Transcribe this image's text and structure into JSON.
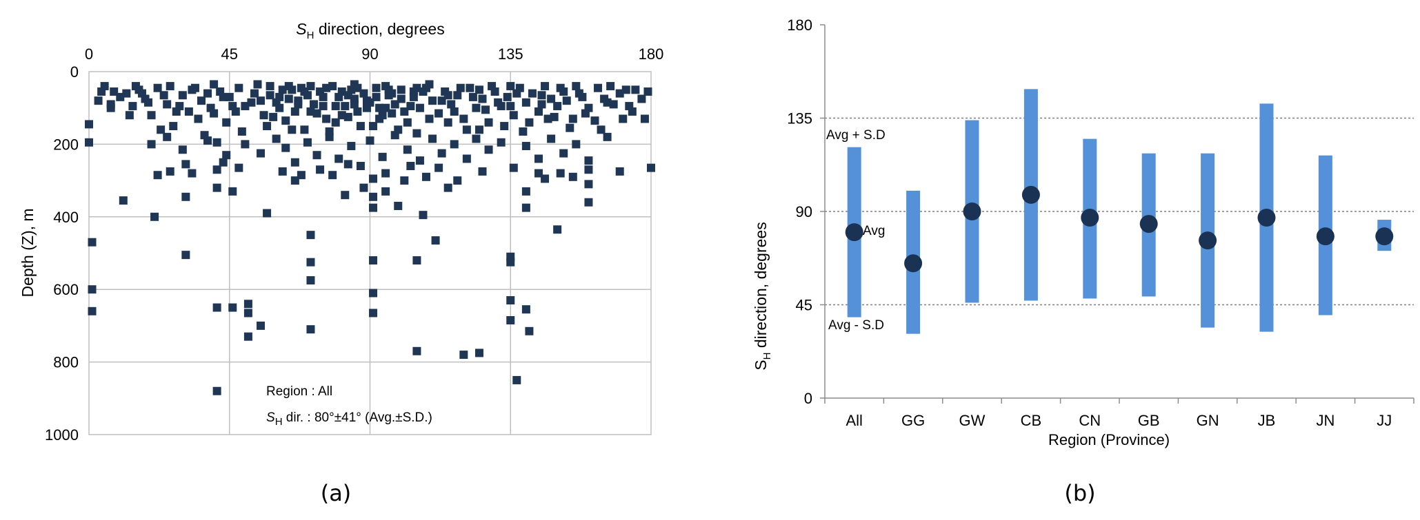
{
  "chart_data": [
    {
      "type": "scatter",
      "panel_label": "(a)",
      "xlabel": {
        "sym": "S",
        "sub": "H",
        "rest": " direction, degrees"
      },
      "ylabel": "Depth (Z), m",
      "xlim": [
        0,
        180
      ],
      "ylim": [
        0,
        1000
      ],
      "y_inverted": true,
      "x_axis_position": "top",
      "xticks": [
        0,
        45,
        90,
        135,
        180
      ],
      "yticks": [
        0,
        200,
        400,
        600,
        800,
        1000
      ],
      "grid": true,
      "marker_color": "#1f3655",
      "annotation": {
        "region": "Region : All",
        "sym": "S",
        "sub": "H",
        "rest": " dir.  : 80°±41° (Avg.±S.D.)"
      },
      "points": [
        [
          0,
          145
        ],
        [
          0,
          195
        ],
        [
          1,
          470
        ],
        [
          1,
          600
        ],
        [
          1,
          660
        ],
        [
          11,
          355
        ],
        [
          21,
          400
        ],
        [
          31,
          255
        ],
        [
          31,
          345
        ],
        [
          31,
          505
        ],
        [
          41,
          195
        ],
        [
          41,
          270
        ],
        [
          41,
          320
        ],
        [
          41,
          650
        ],
        [
          41,
          880
        ],
        [
          46,
          650
        ],
        [
          46,
          330
        ],
        [
          51,
          640
        ],
        [
          51,
          665
        ],
        [
          51,
          730
        ],
        [
          55,
          700
        ],
        [
          57,
          390
        ],
        [
          68,
          285
        ],
        [
          71,
          450
        ],
        [
          71,
          525
        ],
        [
          71,
          575
        ],
        [
          71,
          710
        ],
        [
          82,
          340
        ],
        [
          88,
          320
        ],
        [
          91,
          295
        ],
        [
          91,
          345
        ],
        [
          91,
          375
        ],
        [
          91,
          520
        ],
        [
          91,
          610
        ],
        [
          91,
          665
        ],
        [
          95,
          330
        ],
        [
          99,
          370
        ],
        [
          101,
          300
        ],
        [
          105,
          520
        ],
        [
          105,
          770
        ],
        [
          107,
          395
        ],
        [
          111,
          465
        ],
        [
          115,
          320
        ],
        [
          120,
          780
        ],
        [
          125,
          775
        ],
        [
          135,
          510
        ],
        [
          135,
          525
        ],
        [
          135,
          630
        ],
        [
          135,
          685
        ],
        [
          137,
          850
        ],
        [
          140,
          330
        ],
        [
          140,
          375
        ],
        [
          140,
          655
        ],
        [
          141,
          715
        ],
        [
          150,
          435
        ],
        [
          151,
          280
        ],
        [
          160,
          310
        ],
        [
          160,
          360
        ],
        [
          170,
          275
        ],
        [
          180,
          265
        ],
        [
          5,
          40
        ],
        [
          8,
          55
        ],
        [
          12,
          60
        ],
        [
          18,
          75
        ],
        [
          22,
          45
        ],
        [
          25,
          90
        ],
        [
          28,
          110
        ],
        [
          30,
          65
        ],
        [
          33,
          50
        ],
        [
          36,
          80
        ],
        [
          39,
          100
        ],
        [
          42,
          55
        ],
        [
          45,
          70
        ],
        [
          48,
          45
        ],
        [
          50,
          95
        ],
        [
          53,
          60
        ],
        [
          56,
          120
        ],
        [
          58,
          40
        ],
        [
          60,
          85
        ],
        [
          62,
          50
        ],
        [
          64,
          75
        ],
        [
          66,
          110
        ],
        [
          68,
          45
        ],
        [
          70,
          65
        ],
        [
          72,
          90
        ],
        [
          74,
          55
        ],
        [
          76,
          130
        ],
        [
          78,
          40
        ],
        [
          80,
          70
        ],
        [
          82,
          95
        ],
        [
          84,
          50
        ],
        [
          86,
          110
        ],
        [
          88,
          60
        ],
        [
          90,
          85
        ],
        [
          92,
          45
        ],
        [
          94,
          120
        ],
        [
          96,
          65
        ],
        [
          98,
          90
        ],
        [
          100,
          50
        ],
        [
          102,
          140
        ],
        [
          104,
          70
        ],
        [
          106,
          100
        ],
        [
          108,
          45
        ],
        [
          110,
          80
        ],
        [
          112,
          115
        ],
        [
          114,
          55
        ],
        [
          116,
          90
        ],
        [
          118,
          65
        ],
        [
          120,
          130
        ],
        [
          122,
          45
        ],
        [
          124,
          100
        ],
        [
          126,
          75
        ],
        [
          128,
          140
        ],
        [
          130,
          55
        ],
        [
          132,
          95
        ],
        [
          134,
          70
        ],
        [
          136,
          120
        ],
        [
          138,
          45
        ],
        [
          140,
          85
        ],
        [
          142,
          60
        ],
        [
          144,
          110
        ],
        [
          146,
          40
        ],
        [
          148,
          75
        ],
        [
          150,
          95
        ],
        [
          152,
          55
        ],
        [
          155,
          130
        ],
        [
          158,
          70
        ],
        [
          160,
          100
        ],
        [
          163,
          45
        ],
        [
          166,
          85
        ],
        [
          170,
          60
        ],
        [
          174,
          110
        ],
        [
          177,
          75
        ],
        [
          179,
          55
        ],
        [
          3,
          80
        ],
        [
          7,
          100
        ],
        [
          15,
          40
        ],
        [
          20,
          120
        ],
        [
          24,
          65
        ],
        [
          27,
          150
        ],
        [
          35,
          130
        ],
        [
          38,
          60
        ],
        [
          44,
          140
        ],
        [
          47,
          110
        ],
        [
          52,
          85
        ],
        [
          57,
          150
        ],
        [
          61,
          100
        ],
        [
          63,
          135
        ],
        [
          67,
          80
        ],
        [
          69,
          160
        ],
        [
          73,
          115
        ],
        [
          75,
          70
        ],
        [
          79,
          140
        ],
        [
          81,
          55
        ],
        [
          83,
          125
        ],
        [
          85,
          75
        ],
        [
          87,
          150
        ],
        [
          89,
          100
        ],
        [
          93,
          130
        ],
        [
          97,
          60
        ],
        [
          99,
          160
        ],
        [
          103,
          95
        ],
        [
          107,
          55
        ],
        [
          109,
          130
        ],
        [
          113,
          80
        ],
        [
          117,
          110
        ],
        [
          119,
          45
        ],
        [
          121,
          160
        ],
        [
          123,
          70
        ],
        [
          127,
          105
        ],
        [
          131,
          85
        ],
        [
          133,
          150
        ],
        [
          137,
          60
        ],
        [
          141,
          140
        ],
        [
          145,
          90
        ],
        [
          149,
          125
        ],
        [
          153,
          80
        ],
        [
          157,
          60
        ],
        [
          162,
          135
        ],
        [
          168,
          90
        ],
        [
          20,
          200
        ],
        [
          25,
          180
        ],
        [
          30,
          215
        ],
        [
          38,
          190
        ],
        [
          44,
          230
        ],
        [
          50,
          200
        ],
        [
          55,
          225
        ],
        [
          60,
          185
        ],
        [
          63,
          210
        ],
        [
          66,
          250
        ],
        [
          70,
          195
        ],
        [
          73,
          230
        ],
        [
          77,
          180
        ],
        [
          80,
          240
        ],
        [
          84,
          205
        ],
        [
          87,
          260
        ],
        [
          90,
          190
        ],
        [
          94,
          235
        ],
        [
          98,
          175
        ],
        [
          102,
          215
        ],
        [
          106,
          245
        ],
        [
          110,
          185
        ],
        [
          113,
          225
        ],
        [
          117,
          200
        ],
        [
          121,
          240
        ],
        [
          124,
          185
        ],
        [
          128,
          215
        ],
        [
          132,
          195
        ],
        [
          136,
          265
        ],
        [
          140,
          205
        ],
        [
          144,
          240
        ],
        [
          148,
          185
        ],
        [
          152,
          225
        ],
        [
          156,
          200
        ],
        [
          160,
          245
        ],
        [
          166,
          180
        ],
        [
          22,
          285
        ],
        [
          26,
          275
        ],
        [
          33,
          280
        ],
        [
          43,
          250
        ],
        [
          48,
          265
        ],
        [
          62,
          275
        ],
        [
          66,
          300
        ],
        [
          74,
          270
        ],
        [
          78,
          285
        ],
        [
          83,
          255
        ],
        [
          95,
          280
        ],
        [
          103,
          260
        ],
        [
          108,
          290
        ],
        [
          112,
          265
        ],
        [
          118,
          300
        ],
        [
          126,
          275
        ],
        [
          144,
          280
        ],
        [
          146,
          295
        ],
        [
          155,
          290
        ],
        [
          160,
          270
        ],
        [
          7,
          90
        ],
        [
          13,
          120
        ],
        [
          17,
          60
        ],
        [
          23,
          160
        ],
        [
          29,
          95
        ],
        [
          34,
          45
        ],
        [
          37,
          175
        ],
        [
          40,
          115
        ],
        [
          43,
          70
        ],
        [
          49,
          165
        ],
        [
          54,
          35
        ],
        [
          59,
          125
        ],
        [
          65,
          160
        ],
        [
          71,
          40
        ],
        [
          77,
          165
        ],
        [
          85,
          35
        ],
        [
          91,
          150
        ],
        [
          95,
          40
        ],
        [
          101,
          110
        ],
        [
          105,
          170
        ],
        [
          109,
          35
        ],
        [
          115,
          140
        ],
        [
          125,
          160
        ],
        [
          129,
          40
        ],
        [
          135,
          95
        ],
        [
          139,
          165
        ],
        [
          147,
          130
        ],
        [
          151,
          45
        ],
        [
          154,
          155
        ],
        [
          159,
          115
        ],
        [
          164,
          160
        ],
        [
          167,
          40
        ],
        [
          171,
          130
        ],
        [
          173,
          95
        ],
        [
          175,
          50
        ],
        [
          178,
          130
        ],
        [
          4,
          55
        ],
        [
          10,
          70
        ],
        [
          14,
          95
        ],
        [
          16,
          50
        ],
        [
          19,
          85
        ],
        [
          26,
          40
        ],
        [
          32,
          110
        ],
        [
          40,
          35
        ],
        [
          46,
          95
        ],
        [
          55,
          80
        ],
        [
          65,
          50
        ],
        [
          75,
          95
        ],
        [
          85,
          90
        ],
        [
          95,
          100
        ],
        [
          105,
          45
        ],
        [
          115,
          65
        ],
        [
          125,
          50
        ],
        [
          135,
          40
        ],
        [
          145,
          65
        ],
        [
          156,
          40
        ],
        [
          165,
          75
        ],
        [
          172,
          50
        ],
        [
          58,
          65
        ],
        [
          61,
          70
        ],
        [
          64,
          40
        ],
        [
          67,
          90
        ],
        [
          69,
          55
        ],
        [
          71,
          110
        ],
        [
          76,
          45
        ],
        [
          79,
          95
        ],
        [
          81,
          120
        ],
        [
          83,
          65
        ],
        [
          86,
          45
        ],
        [
          89,
          80
        ],
        [
          92,
          70
        ],
        [
          93,
          100
        ],
        [
          96,
          50
        ],
        [
          97,
          115
        ],
        [
          100,
          75
        ],
        [
          104,
          55
        ]
      ]
    },
    {
      "type": "bar",
      "subtype": "range-with-mean",
      "panel_label": "(b)",
      "xlabel": "Region (Province)",
      "ylabel": {
        "sym": "S",
        "sub": "H",
        "rest": " direction, degrees"
      },
      "ylim": [
        0,
        180
      ],
      "yticks": [
        0,
        45,
        90,
        135,
        180
      ],
      "reference_lines": [
        45,
        90,
        135
      ],
      "categories": [
        "All",
        "GG",
        "GW",
        "CB",
        "CN",
        "GB",
        "GN",
        "JB",
        "JN",
        "JJ"
      ],
      "avg": [
        80,
        65,
        90,
        98,
        87,
        84,
        76,
        87,
        78,
        78
      ],
      "upper": [
        121,
        100,
        134,
        149,
        125,
        118,
        118,
        142,
        117,
        86
      ],
      "lower": [
        39,
        31,
        46,
        47,
        48,
        49,
        34,
        32,
        40,
        71
      ],
      "bar_color": "#5591d9",
      "dot_color": "#1a3355",
      "annotations": {
        "avg_plus_sd": "Avg + S.D",
        "avg": "Avg",
        "avg_minus_sd": "Avg - S.D"
      }
    }
  ]
}
